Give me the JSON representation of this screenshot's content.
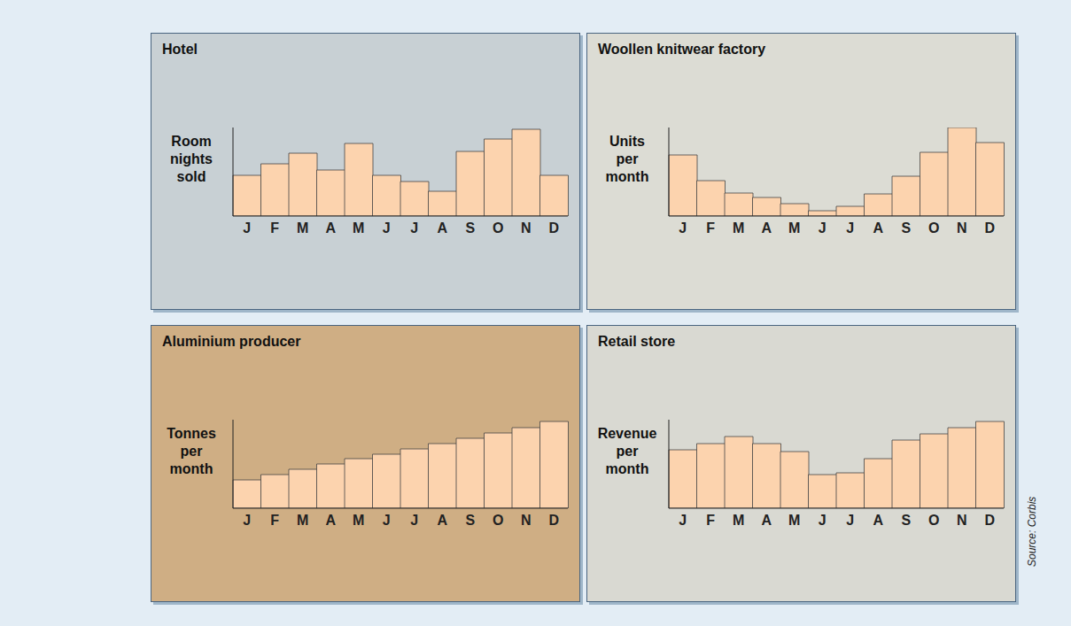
{
  "chart_data": [
    {
      "type": "bar",
      "title": "Hotel",
      "y_label": "Room nights sold",
      "categories": [
        "J",
        "F",
        "M",
        "A",
        "M",
        "J",
        "J",
        "A",
        "S",
        "O",
        "N",
        "D"
      ],
      "values": [
        46,
        59,
        71,
        52,
        82,
        46,
        39,
        28,
        73,
        87,
        98,
        46
      ],
      "color": "#fcd3ae",
      "ylim": [
        0,
        100
      ],
      "tick_labels": "x"
    },
    {
      "type": "bar",
      "title": "Woollen knitwear factory",
      "y_label": "Units per month",
      "categories": [
        "J",
        "F",
        "M",
        "A",
        "M",
        "J",
        "J",
        "A",
        "S",
        "O",
        "N",
        "D"
      ],
      "values": [
        69,
        40,
        26,
        21,
        14,
        6,
        11,
        25,
        45,
        72,
        100,
        83
      ],
      "color": "#fcd3ae",
      "ylim": [
        0,
        100
      ],
      "tick_labels": "x"
    },
    {
      "type": "bar",
      "title": "Aluminium producer",
      "y_label": "Tonnes per month",
      "categories": [
        "J",
        "F",
        "M",
        "A",
        "M",
        "J",
        "J",
        "A",
        "S",
        "O",
        "N",
        "D"
      ],
      "values": [
        32,
        38,
        44,
        50,
        56,
        61,
        67,
        73,
        79,
        85,
        91,
        98
      ],
      "color": "#fcd3ae",
      "ylim": [
        0,
        100
      ],
      "tick_labels": "x"
    },
    {
      "type": "bar",
      "title": "Retail store",
      "y_label": "Revenue per month",
      "categories": [
        "J",
        "F",
        "M",
        "A",
        "M",
        "J",
        "J",
        "A",
        "S",
        "O",
        "N",
        "D"
      ],
      "values": [
        66,
        73,
        81,
        73,
        64,
        38,
        40,
        56,
        77,
        84,
        91,
        98
      ],
      "color": "#fcd3ae",
      "ylim": [
        0,
        100
      ],
      "tick_labels": "x"
    }
  ],
  "source": "Source: Corbis"
}
